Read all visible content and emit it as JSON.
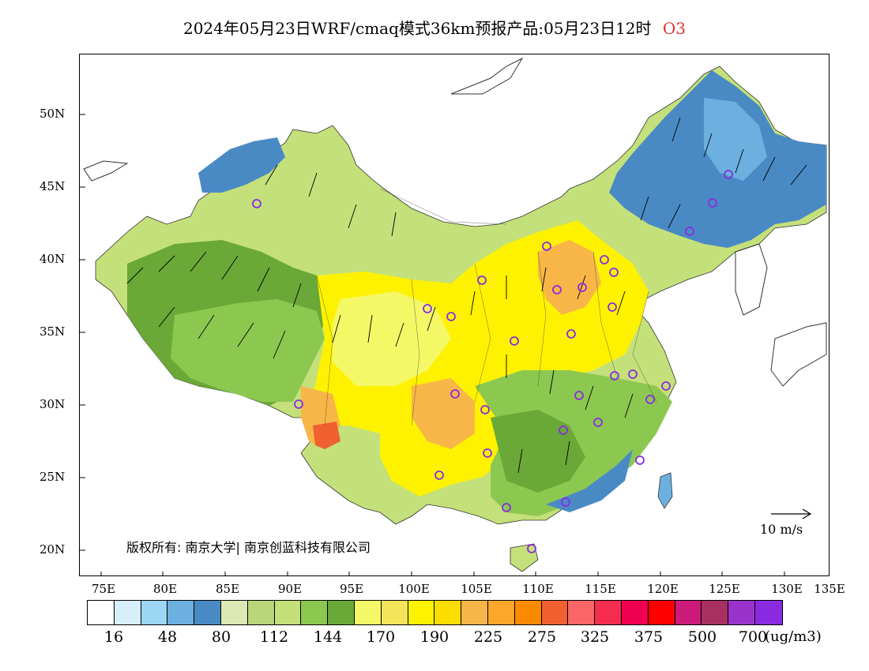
{
  "title": {
    "main": "2024年05月23日WRF/cmaq模式36km预报产品:05月23日12时",
    "pollutant": "O3",
    "pollutant_color": "#e03030"
  },
  "axes": {
    "lat_labels": [
      "50N",
      "45N",
      "40N",
      "35N",
      "30N",
      "25N",
      "20N"
    ],
    "lon_labels": [
      "75E",
      "80E",
      "85E",
      "90E",
      "95E",
      "100E",
      "105E",
      "110E",
      "115E",
      "120E",
      "125E",
      "130E",
      "135E"
    ]
  },
  "copyright": "版权所有: 南京大学| 南京创蓝科技有限公司",
  "wind_reference": "10 m/s",
  "legend": {
    "colors": [
      "#ffffff",
      "#d6effb",
      "#9cd6f4",
      "#6bb0de",
      "#4a8ac4",
      "#dde8b4",
      "#b9d67a",
      "#c4e07a",
      "#8cc850",
      "#6aa838",
      "#f4f866",
      "#f4e45a",
      "#fff200",
      "#fcdd00",
      "#f8b648",
      "#fca62a",
      "#fc8a00",
      "#f06030",
      "#fc6666",
      "#f42c50",
      "#f00050",
      "#ff0000",
      "#cc1a7a",
      "#a83060",
      "#9a33cc",
      "#8a2be2"
    ],
    "labels": [
      "16",
      "48",
      "80",
      "112",
      "144",
      "170",
      "190",
      "225",
      "275",
      "325",
      "375",
      "500",
      "700"
    ],
    "unit": "(ug/m3)"
  },
  "map": {
    "region": "China",
    "field": "O3 concentration",
    "fill_colors": {
      "low_blue": "#4a8ac4",
      "light_blue": "#6bb0de",
      "light_green": "#c4e07a",
      "pale_green": "#dde8b4",
      "mid_green": "#8cc850",
      "dark_green": "#6aa838",
      "yellow": "#fff200",
      "pale_yellow": "#f4f866",
      "orange": "#f8b648",
      "red": "#f06030"
    },
    "station_marker_color": "#8a2be2"
  }
}
